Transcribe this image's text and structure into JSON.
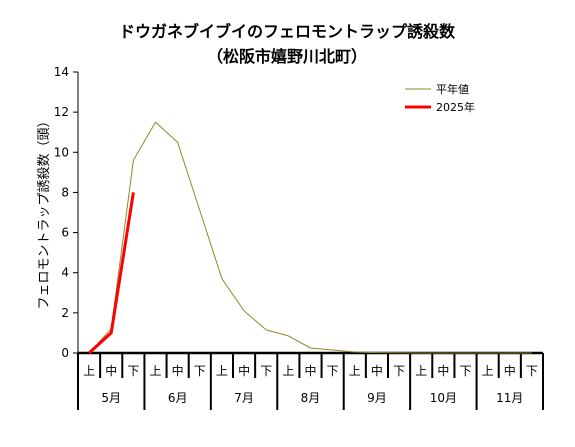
{
  "chart_data": {
    "type": "line",
    "title": "ドウガネブイブイのフェロモントラップ誘殺数",
    "subtitle": "（松阪市嬉野川北町）",
    "xlabel": "",
    "ylabel": "フェロモントラップ誘殺数（頭）",
    "ylim": [
      0,
      14
    ],
    "yticks": [
      "0",
      "2",
      "4",
      "6",
      "8",
      "10",
      "12",
      "14"
    ],
    "periods": [
      "上",
      "中",
      "下"
    ],
    "months": [
      "5月",
      "6月",
      "7月",
      "8月",
      "9月",
      "10月",
      "11月"
    ],
    "legend_position": "top-right",
    "series": [
      {
        "name": "平年値",
        "color": "#8b8b2a",
        "values": [
          0,
          1.2,
          9.6,
          11.5,
          10.5,
          7.1,
          3.7,
          2.1,
          1.15,
          0.85,
          0.25,
          0.15,
          0.05,
          0.02,
          0.01,
          0,
          0,
          0,
          0,
          0,
          0
        ]
      },
      {
        "name": "2025年",
        "color": "#ff0000",
        "values": [
          0,
          1,
          8
        ]
      }
    ]
  }
}
